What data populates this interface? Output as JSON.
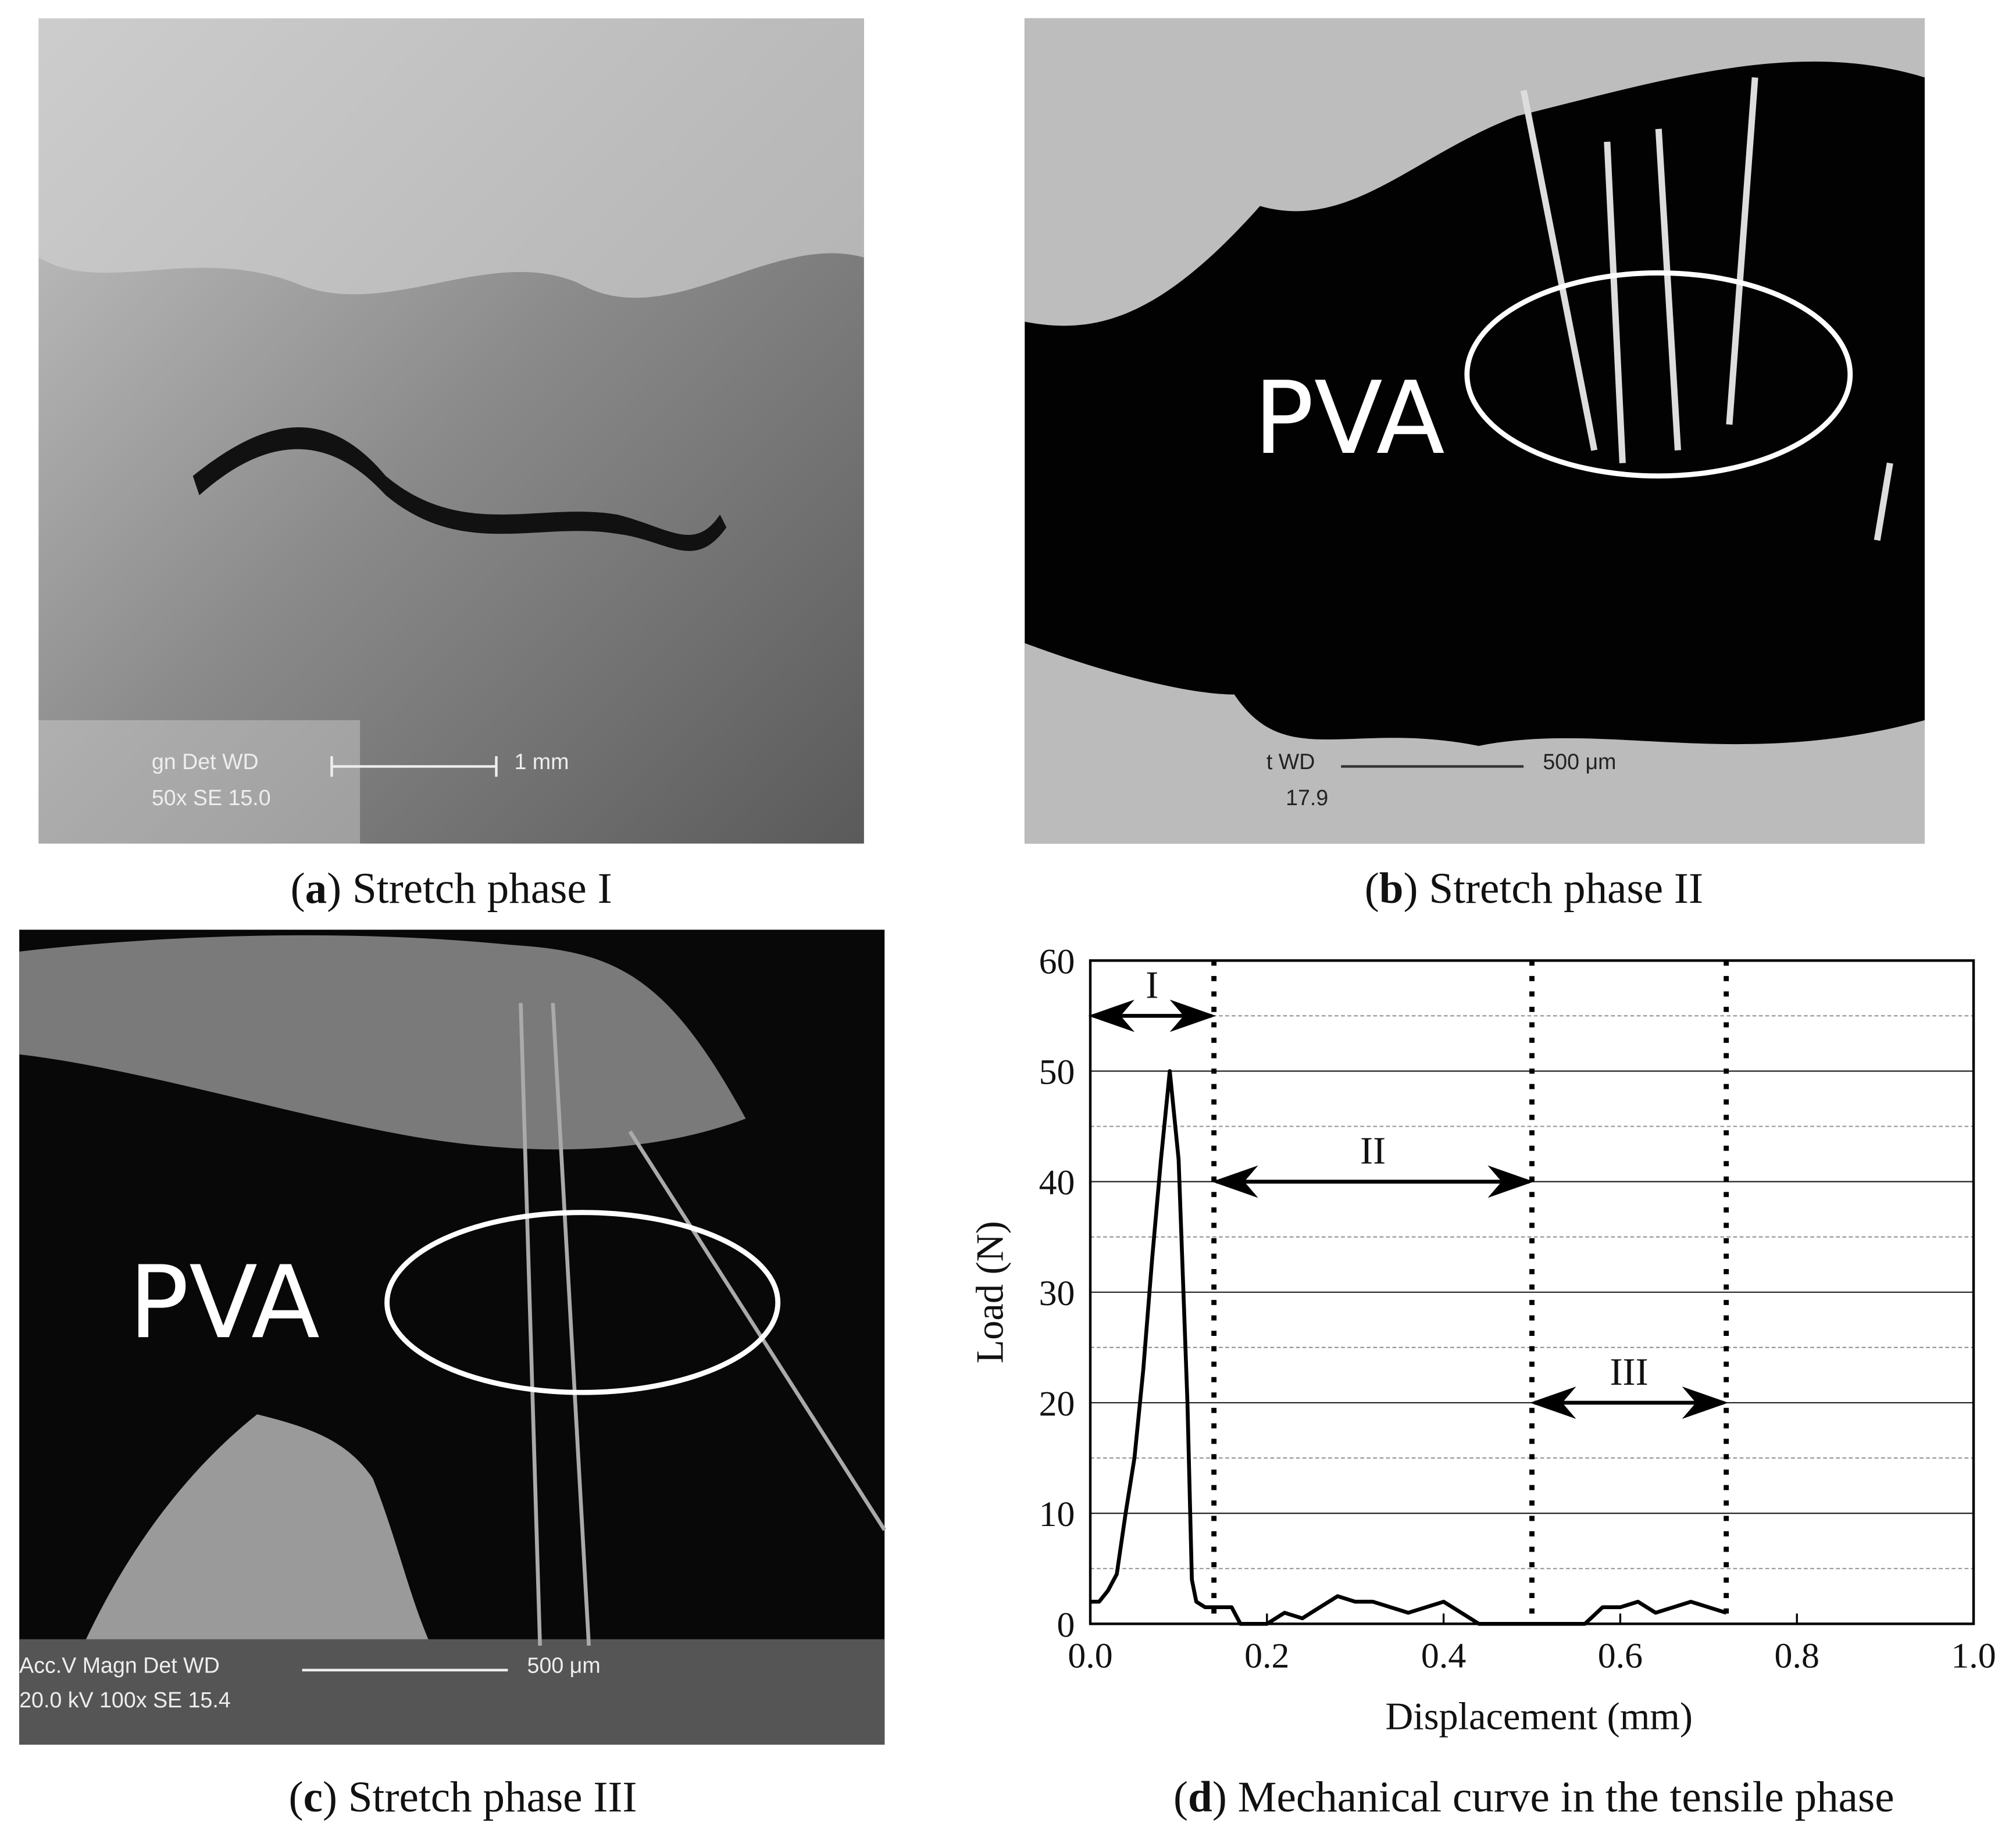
{
  "panels": [
    {
      "caption": {
        "prefix": "(",
        "label": "a",
        "text": ") Stretch phase I"
      },
      "texts": [
        "gn  Det  WD",
        "1 mm",
        "50x    SE   15.0"
      ]
    },
    {
      "caption": {
        "prefix": "(",
        "label": "b",
        "text": ") Stretch phase II"
      },
      "texts": [
        "PVA",
        "t  WD",
        "500 μm",
        "17.9"
      ]
    },
    {
      "caption": {
        "prefix": "(",
        "label": "c",
        "text": ") Stretch phase III"
      },
      "texts": [
        "PVA",
        "Acc.V  Magn    Det  WD",
        "500 μm",
        "20.0 kV 100x    SE   15.4"
      ]
    }
  ],
  "chart_data": {
    "type": "line",
    "caption": {
      "prefix": "(",
      "label": "d",
      "text": ") Mechanical curve in the tensile phase"
    },
    "x_label": "Displacement (mm)",
    "y_label": "Load (N)",
    "color": "#000",
    "x": [
      0,
      0.01,
      0.02,
      0.03,
      0.04,
      0.05,
      0.06,
      0.07,
      0.08,
      0.09,
      0.1,
      0.11,
      0.115,
      0.12,
      0.13,
      0.14,
      0.15,
      0.16,
      0.17,
      0.2,
      0.22,
      0.24,
      0.26,
      0.28,
      0.3,
      0.32,
      0.34,
      0.36,
      0.38,
      0.4,
      0.42,
      0.44,
      0.48,
      0.52,
      0.56,
      0.58,
      0.6,
      0.62,
      0.64,
      0.66,
      0.68,
      0.7,
      0.72
    ],
    "values": [
      2,
      2,
      3,
      4.5,
      10,
      15,
      23,
      33,
      42,
      50,
      42,
      20,
      4,
      2,
      1.5,
      1.5,
      1.5,
      1.5,
      0,
      0,
      1,
      0.5,
      1.5,
      2.5,
      2,
      2,
      1.5,
      1,
      1.5,
      2,
      1,
      0,
      0,
      0,
      0,
      1.5,
      1.5,
      2,
      1,
      1.5,
      2,
      1.5,
      1
    ],
    "xlim": [
      0,
      1
    ],
    "ylim": [
      0,
      60
    ],
    "xticks": [
      {
        "value": 0,
        "label": "0.0"
      },
      0.2,
      0.4,
      0.6,
      0.8,
      {
        "value": 1,
        "label": "1.0"
      }
    ],
    "yticks": [
      0,
      10,
      20,
      30,
      40,
      50,
      60
    ],
    "minor_yticks": [
      5,
      15,
      25,
      35,
      45,
      55
    ],
    "grid": true,
    "vlines": [
      0.14,
      0.5,
      0.72
    ],
    "annotations": [
      {
        "text": "I",
        "x": [
          0,
          0.14
        ],
        "y": 55
      },
      {
        "text": "II",
        "x": [
          0.14,
          0.5
        ],
        "y": 40
      },
      {
        "text": "III",
        "x": [
          0.5,
          0.72
        ],
        "y": 20
      }
    ]
  }
}
